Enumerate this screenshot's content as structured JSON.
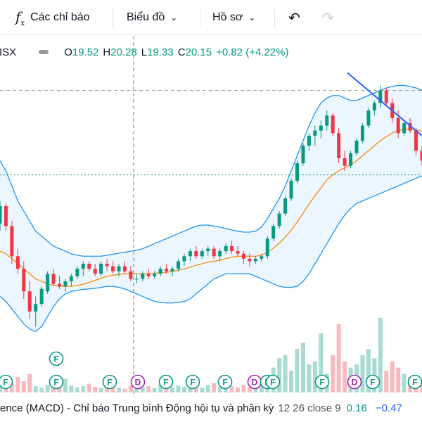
{
  "toolbar": {
    "indicators_label": "Các chỉ báo",
    "chart_label": "Biểu đồ",
    "profile_label": "Hồ sơ"
  },
  "legend": {
    "symbol": "ISX",
    "o_key": "O",
    "o_val": "19.52",
    "h_key": "H",
    "h_val": "20.28",
    "l_key": "L",
    "l_val": "19.33",
    "c_key": "C",
    "c_val": "20.15",
    "change": "+0.82 (+4.22%)"
  },
  "bottom_indicator": {
    "title": "ence (MACD) - Chỉ báo Trung bình Động hội tụ và phân kỳ",
    "params": "12 26 close 9",
    "value1": "0.16",
    "value2": "−0.47"
  },
  "colors": {
    "up": "#089981",
    "down": "#f23645",
    "ma": "#f7931a",
    "bb": "#2196f3",
    "bb_fill": "#e3f2fd",
    "trendline": "#2962ff"
  },
  "chart_data": {
    "type": "candlestick",
    "title": "",
    "xlabel": "",
    "ylabel": "",
    "ylim": [
      16.0,
      21.6
    ],
    "grid": false,
    "price_line": 19.52,
    "high_line": 21.2,
    "candles": [
      [
        18.55,
        19.0,
        18.4,
        18.9
      ],
      [
        18.9,
        18.95,
        18.4,
        18.5
      ],
      [
        18.5,
        18.6,
        17.75,
        17.9
      ],
      [
        17.9,
        18.05,
        17.55,
        17.65
      ],
      [
        17.65,
        17.8,
        17.05,
        17.2
      ],
      [
        17.2,
        17.4,
        16.65,
        16.8
      ],
      [
        16.8,
        17.1,
        16.5,
        16.95
      ],
      [
        16.95,
        17.3,
        16.9,
        17.25
      ],
      [
        17.2,
        17.6,
        17.15,
        17.55
      ],
      [
        17.55,
        17.65,
        17.3,
        17.35
      ],
      [
        17.35,
        17.5,
        17.25,
        17.3
      ],
      [
        17.3,
        17.45,
        17.2,
        17.4
      ],
      [
        17.4,
        17.55,
        17.3,
        17.5
      ],
      [
        17.5,
        17.7,
        17.45,
        17.65
      ],
      [
        17.65,
        17.8,
        17.5,
        17.75
      ],
      [
        17.75,
        17.8,
        17.6,
        17.65
      ],
      [
        17.65,
        17.75,
        17.5,
        17.55
      ],
      [
        17.55,
        17.8,
        17.5,
        17.75
      ],
      [
        17.75,
        17.85,
        17.6,
        17.7
      ],
      [
        17.7,
        17.8,
        17.55,
        17.6
      ],
      [
        17.6,
        17.75,
        17.5,
        17.7
      ],
      [
        17.7,
        17.8,
        17.55,
        17.6
      ],
      [
        17.6,
        17.7,
        17.4,
        17.45
      ],
      [
        17.45,
        17.55,
        17.35,
        17.45
      ],
      [
        17.45,
        17.6,
        17.4,
        17.55
      ],
      [
        17.55,
        17.65,
        17.45,
        17.5
      ],
      [
        17.5,
        17.6,
        17.45,
        17.55
      ],
      [
        17.55,
        17.7,
        17.5,
        17.65
      ],
      [
        17.65,
        17.75,
        17.55,
        17.6
      ],
      [
        17.6,
        17.7,
        17.5,
        17.65
      ],
      [
        17.65,
        17.85,
        17.6,
        17.8
      ],
      [
        17.8,
        17.95,
        17.7,
        17.9
      ],
      [
        17.9,
        18.05,
        17.8,
        18.0
      ],
      [
        18.0,
        18.1,
        17.85,
        17.9
      ],
      [
        17.9,
        18.05,
        17.85,
        18.0
      ],
      [
        18.0,
        18.1,
        17.9,
        18.05
      ],
      [
        18.05,
        18.1,
        17.85,
        17.9
      ],
      [
        17.9,
        18.05,
        17.8,
        18.0
      ],
      [
        18.0,
        18.15,
        17.95,
        18.1
      ],
      [
        18.1,
        18.2,
        17.95,
        18.0
      ],
      [
        18.0,
        18.1,
        17.9,
        17.95
      ],
      [
        17.95,
        18.0,
        17.75,
        17.85
      ],
      [
        17.85,
        17.95,
        17.7,
        17.8
      ],
      [
        17.8,
        17.9,
        17.75,
        17.85
      ],
      [
        17.85,
        17.95,
        17.8,
        17.9
      ],
      [
        17.9,
        18.3,
        17.85,
        18.25
      ],
      [
        18.25,
        18.55,
        18.2,
        18.5
      ],
      [
        18.5,
        18.8,
        18.45,
        18.75
      ],
      [
        18.75,
        19.1,
        18.7,
        19.05
      ],
      [
        19.05,
        19.45,
        19.0,
        19.4
      ],
      [
        19.4,
        19.8,
        19.35,
        19.75
      ],
      [
        19.75,
        20.15,
        19.7,
        20.1
      ],
      [
        20.1,
        20.35,
        20.0,
        20.3
      ],
      [
        20.3,
        20.5,
        20.1,
        20.4
      ],
      [
        20.4,
        20.6,
        20.25,
        20.5
      ],
      [
        20.5,
        20.8,
        20.4,
        20.7
      ],
      [
        20.7,
        20.75,
        20.3,
        20.35
      ],
      [
        20.35,
        20.45,
        19.75,
        19.85
      ],
      [
        19.85,
        20.0,
        19.6,
        19.7
      ],
      [
        19.7,
        20.0,
        19.65,
        19.95
      ],
      [
        19.95,
        20.25,
        19.9,
        20.2
      ],
      [
        20.2,
        20.55,
        20.15,
        20.5
      ],
      [
        20.5,
        20.85,
        20.45,
        20.8
      ],
      [
        20.8,
        21.0,
        20.7,
        20.95
      ],
      [
        20.95,
        21.3,
        20.85,
        21.2
      ],
      [
        21.2,
        21.25,
        20.9,
        20.95
      ],
      [
        20.95,
        21.05,
        20.55,
        20.65
      ],
      [
        20.65,
        20.8,
        20.25,
        20.35
      ],
      [
        20.35,
        20.6,
        20.3,
        20.55
      ],
      [
        20.55,
        20.65,
        20.35,
        20.4
      ],
      [
        20.4,
        20.45,
        19.9,
        20.0
      ],
      [
        20.0,
        20.1,
        19.7,
        19.8
      ]
    ],
    "ma": [
      18.0,
      17.95,
      17.85,
      17.75,
      17.65,
      17.55,
      17.45,
      17.4,
      17.35,
      17.32,
      17.3,
      17.3,
      17.3,
      17.32,
      17.34,
      17.38,
      17.42,
      17.46,
      17.5,
      17.52,
      17.54,
      17.55,
      17.55,
      17.55,
      17.55,
      17.55,
      17.56,
      17.57,
      17.58,
      17.6,
      17.62,
      17.65,
      17.68,
      17.72,
      17.75,
      17.78,
      17.8,
      17.82,
      17.85,
      17.88,
      17.9,
      17.9,
      17.9,
      17.9,
      17.92,
      17.98,
      18.06,
      18.16,
      18.28,
      18.42,
      18.58,
      18.76,
      18.94,
      19.1,
      19.26,
      19.42,
      19.52,
      19.6,
      19.66,
      19.72,
      19.8,
      19.9,
      20.0,
      20.1,
      20.2,
      20.28,
      20.35,
      20.4,
      20.42,
      20.43,
      20.42,
      20.38
    ],
    "bb_upper": [
      19.8,
      19.6,
      19.3,
      19.0,
      18.8,
      18.6,
      18.4,
      18.3,
      18.2,
      18.1,
      18.05,
      18.0,
      17.95,
      17.92,
      17.9,
      17.9,
      17.9,
      17.9,
      17.92,
      17.94,
      17.96,
      17.98,
      18.0,
      18.02,
      18.05,
      18.1,
      18.15,
      18.2,
      18.25,
      18.3,
      18.35,
      18.4,
      18.45,
      18.5,
      18.52,
      18.52,
      18.5,
      18.48,
      18.45,
      18.42,
      18.4,
      18.38,
      18.38,
      18.4,
      18.48,
      18.65,
      18.85,
      19.05,
      19.3,
      19.6,
      19.9,
      20.2,
      20.5,
      20.75,
      20.95,
      21.05,
      21.1,
      21.1,
      21.05,
      21.0,
      21.0,
      21.05,
      21.1,
      21.15,
      21.2,
      21.25,
      21.28,
      21.3,
      21.3,
      21.28,
      21.25,
      21.2
    ],
    "bb_lower": [
      17.1,
      17.0,
      16.85,
      16.7,
      16.55,
      16.45,
      16.4,
      16.5,
      16.7,
      16.9,
      17.05,
      17.15,
      17.2,
      17.22,
      17.24,
      17.25,
      17.26,
      17.28,
      17.3,
      17.3,
      17.28,
      17.25,
      17.2,
      17.15,
      17.1,
      17.05,
      17.0,
      16.98,
      16.97,
      16.97,
      16.98,
      17.0,
      17.05,
      17.15,
      17.25,
      17.35,
      17.45,
      17.5,
      17.55,
      17.55,
      17.55,
      17.55,
      17.55,
      17.5,
      17.45,
      17.4,
      17.35,
      17.3,
      17.28,
      17.28,
      17.3,
      17.4,
      17.55,
      17.75,
      17.95,
      18.15,
      18.35,
      18.55,
      18.72,
      18.85,
      18.95,
      19.0,
      19.05,
      19.1,
      19.15,
      19.2,
      19.25,
      19.3,
      19.35,
      19.4,
      19.45,
      19.5
    ],
    "volume": [
      12,
      20,
      14,
      25,
      18,
      30,
      10,
      8,
      12,
      15,
      9,
      22,
      11,
      8,
      10,
      14,
      9,
      7,
      12,
      10,
      8,
      6,
      11,
      9,
      8,
      10,
      7,
      12,
      9,
      8,
      11,
      9,
      10,
      14,
      8,
      12,
      15,
      9,
      11,
      10,
      8,
      12,
      9,
      11,
      10,
      25,
      40,
      55,
      60,
      35,
      70,
      80,
      45,
      50,
      95,
      30,
      60,
      110,
      50,
      40,
      45,
      60,
      70,
      55,
      120,
      35,
      50,
      40,
      30,
      25,
      20,
      18
    ],
    "trendline": {
      "x": [
        49,
        71
      ],
      "y": [
        21.55,
        20.3
      ]
    },
    "event_markers": [
      "F",
      "F",
      "F",
      "F",
      "F",
      "D",
      "F",
      "F",
      "D",
      "F",
      "F",
      "F",
      "F",
      "D",
      "F"
    ]
  }
}
